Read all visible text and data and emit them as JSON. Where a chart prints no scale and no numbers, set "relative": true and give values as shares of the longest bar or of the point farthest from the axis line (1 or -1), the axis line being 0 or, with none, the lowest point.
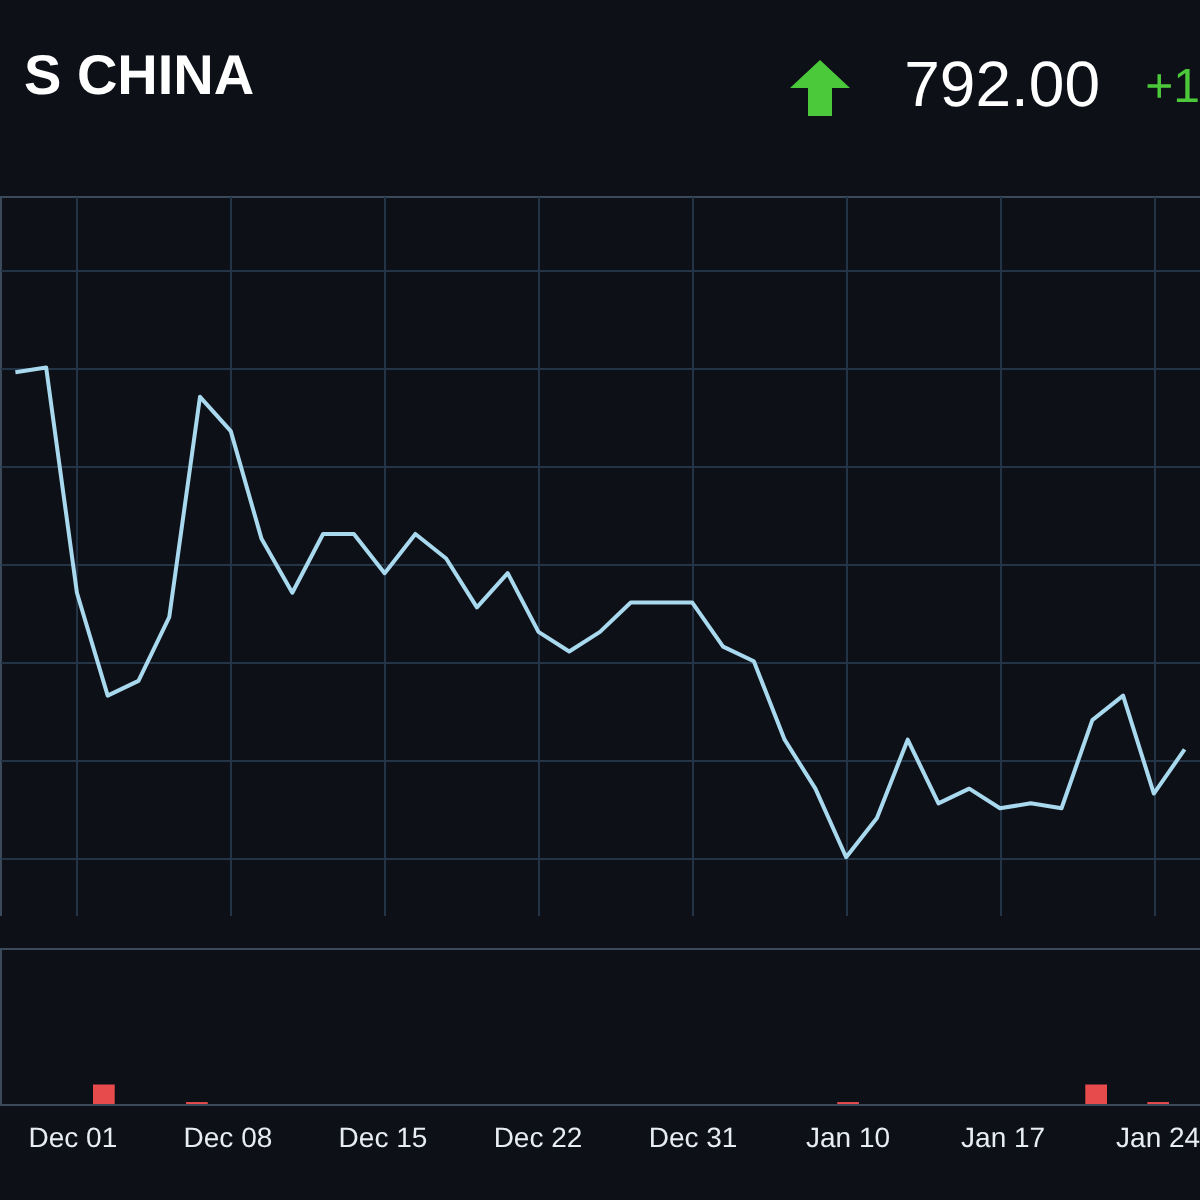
{
  "chart_data": [
    {
      "type": "line",
      "title": "S CHINA",
      "annotations": [
        "792.00",
        "+1"
      ],
      "relative": true,
      "grid": true,
      "categories": [
        null,
        null,
        null,
        null,
        null,
        null,
        null,
        null,
        null,
        null,
        null,
        null,
        null,
        null,
        null,
        null,
        null,
        null,
        null,
        null,
        null,
        null,
        null,
        null,
        null,
        null,
        null,
        null,
        null,
        null,
        null,
        null,
        null,
        null,
        null,
        null,
        null,
        null,
        null
      ],
      "series": [
        {
          "color": "#a9d9ef",
          "values": [
            0.99,
            1,
            0.54,
            0.33,
            0.36,
            0.49,
            0.94,
            0.87,
            0.65,
            0.54,
            0.66,
            0.66,
            0.58,
            0.66,
            0.61,
            0.51,
            0.58,
            0.46,
            0.42,
            0.46,
            0.52,
            0.52,
            0.52,
            0.43,
            0.4,
            0.24,
            0.14,
            0,
            0.08,
            0.24,
            0.11,
            0.14,
            0.1,
            0.11,
            0.1,
            0.28,
            0.33,
            0.13,
            0.22
          ]
        }
      ]
    },
    {
      "type": "bar",
      "relative": true,
      "grid": false,
      "categories": [
        null,
        null,
        "Dec 01",
        null,
        null,
        null,
        null,
        "Dec 08",
        null,
        null,
        null,
        null,
        "Dec 15",
        null,
        null,
        null,
        null,
        "Dec 22",
        null,
        null,
        null,
        null,
        "Dec 31",
        null,
        null,
        null,
        null,
        "Jan 10",
        null,
        null,
        null,
        null,
        "Jan 17",
        null,
        null,
        null,
        null,
        "Jan 24",
        null
      ],
      "series": [
        {
          "color": "#e84b4b",
          "values": [
            null,
            null,
            null,
            1,
            null,
            null,
            0.1,
            null,
            null,
            null,
            null,
            null,
            null,
            null,
            null,
            null,
            null,
            null,
            null,
            null,
            null,
            null,
            null,
            null,
            null,
            null,
            null,
            0.1,
            null,
            null,
            null,
            null,
            null,
            null,
            null,
            1,
            null,
            0.1,
            null
          ]
        }
      ]
    }
  ]
}
